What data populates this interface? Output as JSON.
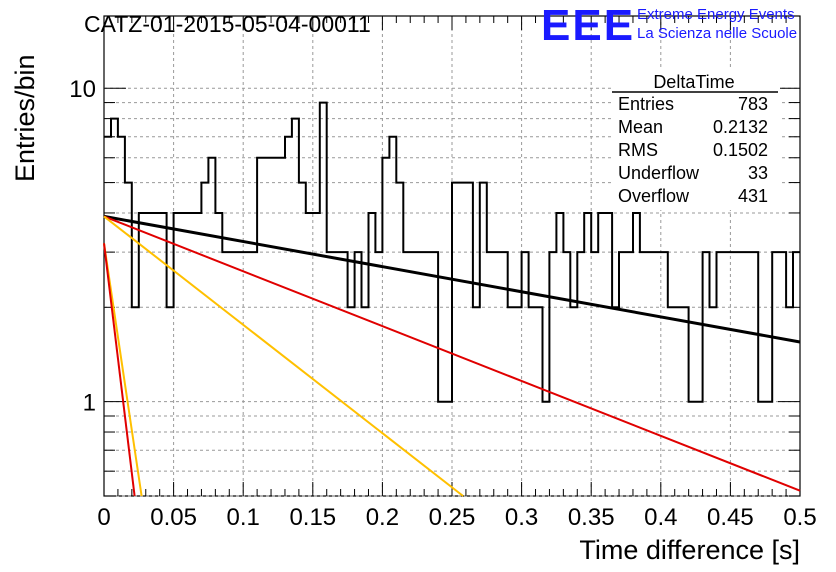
{
  "title": "CATZ-01-2015-05-04-00011",
  "logo": {
    "mark": "EEE",
    "line1": "Extreme Energy Events",
    "line2": "La Scienza nelle Scuole",
    "color": "#1a1aff"
  },
  "stats_box": {
    "title": "DeltaTime",
    "rows": [
      {
        "label": "Entries",
        "value": "783"
      },
      {
        "label": "Mean",
        "value": "0.2132"
      },
      {
        "label": "RMS",
        "value": "0.1502"
      },
      {
        "label": "Underflow",
        "value": "33"
      },
      {
        "label": "Overflow",
        "value": "431"
      }
    ]
  },
  "chart_data": {
    "type": "line",
    "title": "CATZ-01-2015-05-04-00011",
    "xlabel": "Time difference [s]",
    "ylabel": "Entries/bin",
    "xlim": [
      0,
      0.5
    ],
    "ylim": [
      0.5,
      17
    ],
    "yscale": "log",
    "grid": true,
    "x_ticks": [
      "0",
      "0.05",
      "0.1",
      "0.15",
      "0.2",
      "0.25",
      "0.3",
      "0.35",
      "0.4",
      "0.45",
      "0.5"
    ],
    "x_tick_values": [
      0,
      0.05,
      0.1,
      0.15,
      0.2,
      0.25,
      0.3,
      0.35,
      0.4,
      0.45,
      0.5
    ],
    "y_ticks": [
      "1",
      "10"
    ],
    "y_tick_values": [
      1,
      10
    ],
    "histogram": {
      "color": "#000000",
      "bin_width": 0.005,
      "bin_start": 0,
      "values": [
        7,
        8,
        7,
        5,
        2,
        4,
        4,
        4,
        4,
        2,
        4,
        4,
        4,
        4,
        5,
        6,
        4,
        3,
        3,
        3,
        3,
        3,
        6,
        6,
        6,
        6,
        7,
        8,
        5,
        4,
        4,
        9,
        3,
        3,
        3,
        2,
        3,
        2,
        4,
        3,
        6,
        7,
        5,
        3,
        3,
        3,
        3,
        3,
        1,
        1,
        5,
        5,
        5,
        2,
        5,
        3,
        3,
        3,
        2,
        2,
        3,
        2,
        2,
        1,
        3,
        4,
        3,
        2,
        3,
        4,
        3,
        4,
        4,
        2,
        3,
        3,
        4,
        3,
        3,
        3,
        3,
        2,
        2,
        2,
        1,
        1,
        3,
        2,
        3,
        3,
        3,
        3,
        3,
        3,
        1,
        1,
        3,
        3,
        2,
        3
      ]
    },
    "series": [
      {
        "color": "#000000",
        "x": [
          0.0,
          0.5
        ],
        "y": [
          3.9,
          1.55
        ]
      },
      {
        "color": "#e00000",
        "x": [
          0.0,
          0.5
        ],
        "y": [
          3.9,
          0.52
        ]
      },
      {
        "color": "#ffc000",
        "x": [
          0.0,
          0.258
        ],
        "y": [
          3.9,
          0.5
        ]
      },
      {
        "color": "#ffc000",
        "x": [
          0.0,
          0.027
        ],
        "y": [
          3.2,
          0.5
        ]
      },
      {
        "color": "#e00000",
        "x": [
          0.0,
          0.022
        ],
        "y": [
          3.2,
          0.5
        ]
      }
    ]
  }
}
